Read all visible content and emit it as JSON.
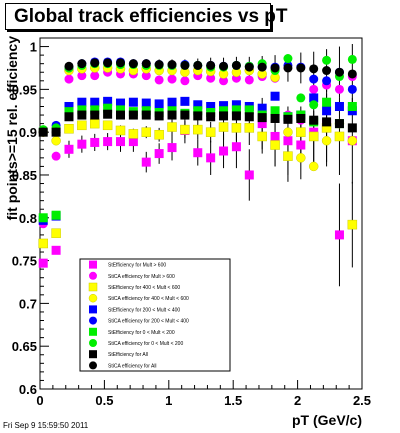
{
  "title": "Global track efficiencies vs pT",
  "footer": "Fri Sep  9 15:59:50 2011",
  "chart_data": {
    "type": "scatter",
    "title": "Global track efficiencies vs pT",
    "xlabel": "pT (GeV/c)",
    "ylabel": "fit points>=15 rel. efficiency",
    "xlim": [
      0,
      2.5
    ],
    "ylim": [
      0.6,
      1.01
    ],
    "xticks": [
      "0",
      "0.5",
      "1",
      "1.5",
      "2",
      "2.5"
    ],
    "yticks": [
      "0.6",
      "0.65",
      "0.7",
      "0.75",
      "0.8",
      "0.85",
      "0.9",
      "0.95",
      "1"
    ],
    "grid": false,
    "legend_position": "bottom-left",
    "x": [
      0.025,
      0.125,
      0.225,
      0.325,
      0.425,
      0.525,
      0.625,
      0.725,
      0.825,
      0.925,
      1.025,
      1.125,
      1.225,
      1.325,
      1.425,
      1.525,
      1.625,
      1.725,
      1.825,
      1.925,
      2.025,
      2.125,
      2.225,
      2.325,
      2.425
    ],
    "series": [
      {
        "name": "StEfficiency  for Mult > 600",
        "color": "#ff00ff",
        "marker": "square",
        "values": [
          0.747,
          0.762,
          0.88,
          0.886,
          0.888,
          0.889,
          0.889,
          0.889,
          0.865,
          0.875,
          0.882,
          0.902,
          0.876,
          0.87,
          0.878,
          0.883,
          0.85,
          0.91,
          0.895,
          0.89,
          0.885,
          0.9,
          0.91,
          0.78,
          0.89
        ]
      },
      {
        "name": "StiCA efficiency  for Mult > 600",
        "color": "#ff00ff",
        "marker": "circle",
        "values": [
          0.793,
          0.872,
          0.962,
          0.966,
          0.966,
          0.97,
          0.968,
          0.968,
          0.966,
          0.961,
          0.962,
          0.96,
          0.966,
          0.963,
          0.96,
          0.963,
          0.961,
          0.965,
          0.963,
          0.92,
          0.914,
          0.95,
          0.955,
          0.95,
          0.965
        ]
      },
      {
        "name": "StEfficiency  for 400 < Mult < 600",
        "color": "#ffff00",
        "marker": "square",
        "values": [
          0.77,
          0.782,
          0.904,
          0.908,
          0.91,
          0.908,
          0.902,
          0.898,
          0.9,
          0.897,
          0.906,
          0.903,
          0.903,
          0.9,
          0.906,
          0.905,
          0.905,
          0.895,
          0.885,
          0.872,
          0.9,
          0.895,
          0.905,
          0.895,
          0.792
        ]
      },
      {
        "name": "StiCA efficiency  for 400 < Mult < 600",
        "color": "#ffff00",
        "marker": "circle",
        "values": [
          0.9,
          0.89,
          0.972,
          0.974,
          0.975,
          0.975,
          0.974,
          0.972,
          0.974,
          0.972,
          0.972,
          0.97,
          0.972,
          0.971,
          0.968,
          0.97,
          0.972,
          0.968,
          0.964,
          0.9,
          0.87,
          0.86,
          0.89,
          0.91,
          0.89
        ]
      },
      {
        "name": "StEfficiency  for 200 < Mult < 400",
        "color": "#0000ff",
        "marker": "square",
        "values": [
          0.797,
          0.802,
          0.93,
          0.935,
          0.935,
          0.936,
          0.934,
          0.935,
          0.934,
          0.933,
          0.935,
          0.936,
          0.932,
          0.93,
          0.931,
          0.932,
          0.93,
          0.928,
          0.942,
          0.918,
          0.92,
          0.94,
          0.925,
          0.93,
          0.925
        ]
      },
      {
        "name": "StiCA efficiency  for 200 < Mult < 400",
        "color": "#0000ff",
        "marker": "circle",
        "values": [
          0.9,
          0.908,
          0.975,
          0.98,
          0.982,
          0.982,
          0.982,
          0.98,
          0.98,
          0.979,
          0.978,
          0.979,
          0.978,
          0.978,
          0.977,
          0.978,
          0.977,
          0.976,
          0.976,
          0.978,
          0.976,
          0.962,
          0.96,
          0.97,
          0.95
        ]
      },
      {
        "name": "StEfficiency  for 0 < Mult < 200",
        "color": "#00ee00",
        "marker": "square",
        "values": [
          0.8,
          0.803,
          0.924,
          0.926,
          0.926,
          0.928,
          0.926,
          0.924,
          0.925,
          0.923,
          0.925,
          0.922,
          0.925,
          0.923,
          0.925,
          0.926,
          0.926,
          0.92,
          0.925,
          0.918,
          0.92,
          0.912,
          0.935,
          0.91,
          0.93
        ]
      },
      {
        "name": "StiCA efficiency  for 0 < Mult < 200",
        "color": "#00ee00",
        "marker": "circle",
        "values": [
          0.903,
          0.905,
          0.975,
          0.978,
          0.98,
          0.98,
          0.979,
          0.979,
          0.978,
          0.978,
          0.978,
          0.978,
          0.978,
          0.976,
          0.976,
          0.978,
          0.977,
          0.98,
          0.972,
          0.986,
          0.94,
          0.932,
          0.984,
          0.965,
          0.985
        ]
      },
      {
        "name": "StEfficiency  for All",
        "color": "#000000",
        "marker": "square",
        "values": [
          0.9,
          0.9,
          0.918,
          0.92,
          0.92,
          0.921,
          0.92,
          0.92,
          0.92,
          0.919,
          0.92,
          0.92,
          0.919,
          0.918,
          0.919,
          0.919,
          0.918,
          0.917,
          0.916,
          0.915,
          0.916,
          0.914,
          0.912,
          0.91,
          0.905
        ]
      },
      {
        "name": "StiCA efficiency  for All",
        "color": "#000000",
        "marker": "circle",
        "values": [
          0.9,
          0.9,
          0.977,
          0.98,
          0.981,
          0.981,
          0.981,
          0.98,
          0.98,
          0.979,
          0.979,
          0.978,
          0.978,
          0.978,
          0.977,
          0.978,
          0.976,
          0.976,
          0.975,
          0.975,
          0.975,
          0.974,
          0.972,
          0.97,
          0.968
        ]
      }
    ],
    "error_bars": {
      "StEfficiency  for Mult > 600": [
        0,
        0,
        0.01,
        0.01,
        0.01,
        0.01,
        0.012,
        0.012,
        0.012,
        0.012,
        0.015,
        0.015,
        0.015,
        0.02,
        0.02,
        0.025,
        0.03,
        0.03,
        0.035,
        0.04,
        0.04,
        0.04,
        0.05,
        0.06,
        0.05
      ],
      "StEfficiency  for 400 < Mult < 600": [
        0,
        0,
        0.005,
        0.005,
        0.005,
        0.005,
        0.006,
        0.006,
        0.007,
        0.008,
        0.01,
        0.01,
        0.012,
        0.012,
        0.015,
        0.015,
        0.02,
        0.02,
        0.025,
        0.03,
        0.03,
        0.03,
        0.04,
        0.045,
        0.05
      ],
      "StiCA efficiency  for All": [
        0,
        0,
        0.004,
        0.004,
        0.004,
        0.004,
        0.005,
        0.005,
        0.005,
        0.006,
        0.006,
        0.007,
        0.008,
        0.009,
        0.01,
        0.01,
        0.012,
        0.013,
        0.015,
        0.016,
        0.018,
        0.02,
        0.025,
        0.03,
        0.035
      ]
    }
  }
}
